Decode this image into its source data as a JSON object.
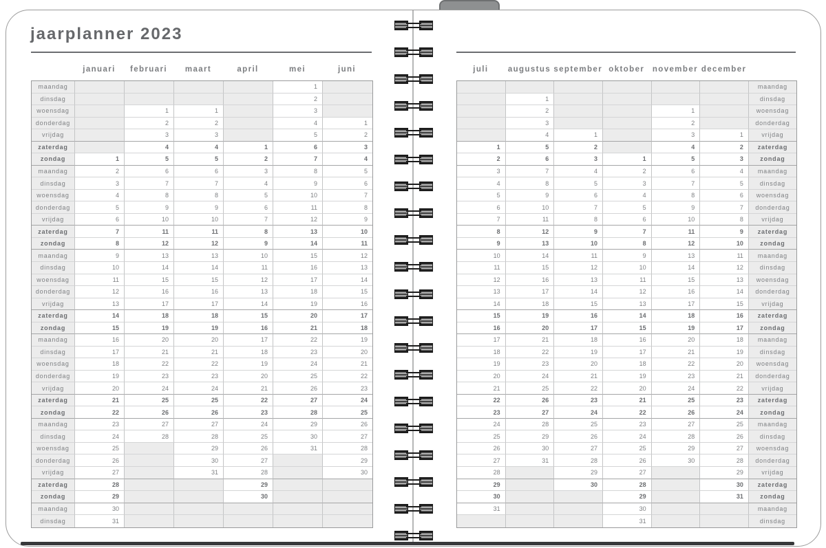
{
  "title": "jaarplanner 2023",
  "year": "2023",
  "weekdays": [
    "maandag",
    "dinsdag",
    "woensdag",
    "donderdag",
    "vrijdag",
    "zaterdag",
    "zondag"
  ],
  "binding": {
    "coil_pairs": 20
  },
  "colors": {
    "title_text": "#66686b",
    "grid_text": "#7e8083",
    "shaded_cell": "#ececec",
    "tab": "#8e9091",
    "bottom_edge": "#37383a"
  },
  "pages": [
    {
      "side": "left",
      "months": [
        "januari",
        "februari",
        "maart",
        "april",
        "mei",
        "juni"
      ],
      "rows": [
        {
          "day": "maandag",
          "cells": [
            "",
            "",
            "",
            "",
            "1",
            ""
          ]
        },
        {
          "day": "dinsdag",
          "cells": [
            "",
            "",
            "",
            "",
            "2",
            ""
          ]
        },
        {
          "day": "woensdag",
          "cells": [
            "",
            "1",
            "1",
            "",
            "3",
            ""
          ]
        },
        {
          "day": "donderdag",
          "cells": [
            "",
            "2",
            "2",
            "",
            "4",
            "1"
          ]
        },
        {
          "day": "vrijdag",
          "cells": [
            "",
            "3",
            "3",
            "",
            "5",
            "2"
          ]
        },
        {
          "day": "zaterdag",
          "cells": [
            "",
            "4",
            "4",
            "1",
            "6",
            "3"
          ]
        },
        {
          "day": "zondag",
          "cells": [
            "1",
            "5",
            "5",
            "2",
            "7",
            "4"
          ]
        },
        {
          "day": "maandag",
          "cells": [
            "2",
            "6",
            "6",
            "3",
            "8",
            "5"
          ]
        },
        {
          "day": "dinsdag",
          "cells": [
            "3",
            "7",
            "7",
            "4",
            "9",
            "6"
          ]
        },
        {
          "day": "woensdag",
          "cells": [
            "4",
            "8",
            "8",
            "5",
            "10",
            "7"
          ]
        },
        {
          "day": "donderdag",
          "cells": [
            "5",
            "9",
            "9",
            "6",
            "11",
            "8"
          ]
        },
        {
          "day": "vrijdag",
          "cells": [
            "6",
            "10",
            "10",
            "7",
            "12",
            "9"
          ]
        },
        {
          "day": "zaterdag",
          "cells": [
            "7",
            "11",
            "11",
            "8",
            "13",
            "10"
          ]
        },
        {
          "day": "zondag",
          "cells": [
            "8",
            "12",
            "12",
            "9",
            "14",
            "11"
          ]
        },
        {
          "day": "maandag",
          "cells": [
            "9",
            "13",
            "13",
            "10",
            "15",
            "12"
          ]
        },
        {
          "day": "dinsdag",
          "cells": [
            "10",
            "14",
            "14",
            "11",
            "16",
            "13"
          ]
        },
        {
          "day": "woensdag",
          "cells": [
            "11",
            "15",
            "15",
            "12",
            "17",
            "14"
          ]
        },
        {
          "day": "donderdag",
          "cells": [
            "12",
            "16",
            "16",
            "13",
            "18",
            "15"
          ]
        },
        {
          "day": "vrijdag",
          "cells": [
            "13",
            "17",
            "17",
            "14",
            "19",
            "16"
          ]
        },
        {
          "day": "zaterdag",
          "cells": [
            "14",
            "18",
            "18",
            "15",
            "20",
            "17"
          ]
        },
        {
          "day": "zondag",
          "cells": [
            "15",
            "19",
            "19",
            "16",
            "21",
            "18"
          ]
        },
        {
          "day": "maandag",
          "cells": [
            "16",
            "20",
            "20",
            "17",
            "22",
            "19"
          ]
        },
        {
          "day": "dinsdag",
          "cells": [
            "17",
            "21",
            "21",
            "18",
            "23",
            "20"
          ]
        },
        {
          "day": "woensdag",
          "cells": [
            "18",
            "22",
            "22",
            "19",
            "24",
            "21"
          ]
        },
        {
          "day": "donderdag",
          "cells": [
            "19",
            "23",
            "23",
            "20",
            "25",
            "22"
          ]
        },
        {
          "day": "vrijdag",
          "cells": [
            "20",
            "24",
            "24",
            "21",
            "26",
            "23"
          ]
        },
        {
          "day": "zaterdag",
          "cells": [
            "21",
            "25",
            "25",
            "22",
            "27",
            "24"
          ]
        },
        {
          "day": "zondag",
          "cells": [
            "22",
            "26",
            "26",
            "23",
            "28",
            "25"
          ]
        },
        {
          "day": "maandag",
          "cells": [
            "23",
            "27",
            "27",
            "24",
            "29",
            "26"
          ]
        },
        {
          "day": "dinsdag",
          "cells": [
            "24",
            "28",
            "28",
            "25",
            "30",
            "27"
          ]
        },
        {
          "day": "woensdag",
          "cells": [
            "25",
            "",
            "29",
            "26",
            "31",
            "28"
          ]
        },
        {
          "day": "donderdag",
          "cells": [
            "26",
            "",
            "30",
            "27",
            "",
            "29"
          ]
        },
        {
          "day": "vrijdag",
          "cells": [
            "27",
            "",
            "31",
            "28",
            "",
            "30"
          ]
        },
        {
          "day": "zaterdag",
          "cells": [
            "28",
            "",
            "",
            "29",
            "",
            ""
          ]
        },
        {
          "day": "zondag",
          "cells": [
            "29",
            "",
            "",
            "30",
            "",
            ""
          ]
        },
        {
          "day": "maandag",
          "cells": [
            "30",
            "",
            "",
            "",
            "",
            ""
          ]
        },
        {
          "day": "dinsdag",
          "cells": [
            "31",
            "",
            "",
            "",
            "",
            ""
          ]
        }
      ]
    },
    {
      "side": "right",
      "months": [
        "juli",
        "augustus",
        "september",
        "oktober",
        "november",
        "december"
      ],
      "rows": [
        {
          "day": "maandag",
          "cells": [
            "",
            "",
            "",
            "",
            "",
            ""
          ]
        },
        {
          "day": "dinsdag",
          "cells": [
            "",
            "1",
            "",
            "",
            "",
            ""
          ]
        },
        {
          "day": "woensdag",
          "cells": [
            "",
            "2",
            "",
            "",
            "1",
            ""
          ]
        },
        {
          "day": "donderdag",
          "cells": [
            "",
            "3",
            "",
            "",
            "2",
            ""
          ]
        },
        {
          "day": "vrijdag",
          "cells": [
            "",
            "4",
            "1",
            "",
            "3",
            "1"
          ]
        },
        {
          "day": "zaterdag",
          "cells": [
            "1",
            "5",
            "2",
            "",
            "4",
            "2"
          ]
        },
        {
          "day": "zondag",
          "cells": [
            "2",
            "6",
            "3",
            "1",
            "5",
            "3"
          ]
        },
        {
          "day": "maandag",
          "cells": [
            "3",
            "7",
            "4",
            "2",
            "6",
            "4"
          ]
        },
        {
          "day": "dinsdag",
          "cells": [
            "4",
            "8",
            "5",
            "3",
            "7",
            "5"
          ]
        },
        {
          "day": "woensdag",
          "cells": [
            "5",
            "9",
            "6",
            "4",
            "8",
            "6"
          ]
        },
        {
          "day": "donderdag",
          "cells": [
            "6",
            "10",
            "7",
            "5",
            "9",
            "7"
          ]
        },
        {
          "day": "vrijdag",
          "cells": [
            "7",
            "11",
            "8",
            "6",
            "10",
            "8"
          ]
        },
        {
          "day": "zaterdag",
          "cells": [
            "8",
            "12",
            "9",
            "7",
            "11",
            "9"
          ]
        },
        {
          "day": "zondag",
          "cells": [
            "9",
            "13",
            "10",
            "8",
            "12",
            "10"
          ]
        },
        {
          "day": "maandag",
          "cells": [
            "10",
            "14",
            "11",
            "9",
            "13",
            "11"
          ]
        },
        {
          "day": "dinsdag",
          "cells": [
            "11",
            "15",
            "12",
            "10",
            "14",
            "12"
          ]
        },
        {
          "day": "woensdag",
          "cells": [
            "12",
            "16",
            "13",
            "11",
            "15",
            "13"
          ]
        },
        {
          "day": "donderdag",
          "cells": [
            "13",
            "17",
            "14",
            "12",
            "16",
            "14"
          ]
        },
        {
          "day": "vrijdag",
          "cells": [
            "14",
            "18",
            "15",
            "13",
            "17",
            "15"
          ]
        },
        {
          "day": "zaterdag",
          "cells": [
            "15",
            "19",
            "16",
            "14",
            "18",
            "16"
          ]
        },
        {
          "day": "zondag",
          "cells": [
            "16",
            "20",
            "17",
            "15",
            "19",
            "17"
          ]
        },
        {
          "day": "maandag",
          "cells": [
            "17",
            "21",
            "18",
            "16",
            "20",
            "18"
          ]
        },
        {
          "day": "dinsdag",
          "cells": [
            "18",
            "22",
            "19",
            "17",
            "21",
            "19"
          ]
        },
        {
          "day": "woensdag",
          "cells": [
            "19",
            "23",
            "20",
            "18",
            "22",
            "20"
          ]
        },
        {
          "day": "donderdag",
          "cells": [
            "20",
            "24",
            "21",
            "19",
            "23",
            "21"
          ]
        },
        {
          "day": "vrijdag",
          "cells": [
            "21",
            "25",
            "22",
            "20",
            "24",
            "22"
          ]
        },
        {
          "day": "zaterdag",
          "cells": [
            "22",
            "26",
            "23",
            "21",
            "25",
            "23"
          ]
        },
        {
          "day": "zondag",
          "cells": [
            "23",
            "27",
            "24",
            "22",
            "26",
            "24"
          ]
        },
        {
          "day": "maandag",
          "cells": [
            "24",
            "28",
            "25",
            "23",
            "27",
            "25"
          ]
        },
        {
          "day": "dinsdag",
          "cells": [
            "25",
            "29",
            "26",
            "24",
            "28",
            "26"
          ]
        },
        {
          "day": "woensdag",
          "cells": [
            "26",
            "30",
            "27",
            "25",
            "29",
            "27"
          ]
        },
        {
          "day": "donderdag",
          "cells": [
            "27",
            "31",
            "28",
            "26",
            "30",
            "28"
          ]
        },
        {
          "day": "vrijdag",
          "cells": [
            "28",
            "",
            "29",
            "27",
            "",
            "29"
          ]
        },
        {
          "day": "zaterdag",
          "cells": [
            "29",
            "",
            "30",
            "28",
            "",
            "30"
          ]
        },
        {
          "day": "zondag",
          "cells": [
            "30",
            "",
            "",
            "29",
            "",
            "31"
          ]
        },
        {
          "day": "maandag",
          "cells": [
            "31",
            "",
            "",
            "30",
            "",
            ""
          ]
        },
        {
          "day": "dinsdag",
          "cells": [
            "",
            "",
            "",
            "31",
            "",
            ""
          ]
        }
      ]
    }
  ]
}
